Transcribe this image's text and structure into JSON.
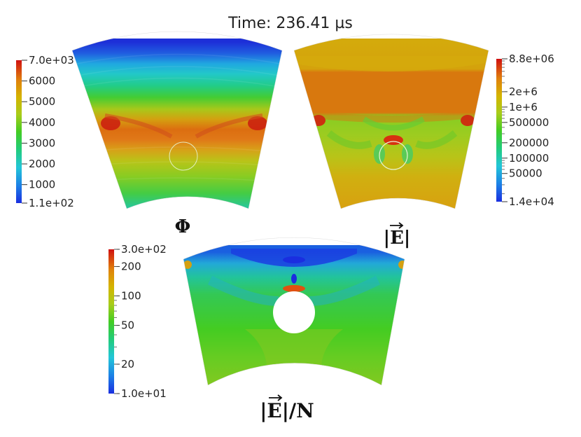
{
  "title": "Time: 236.41 µs",
  "colors": {
    "colormap": [
      "#1a2ee0",
      "#1c7fe6",
      "#22c6d8",
      "#22cc77",
      "#44cc22",
      "#a8cc1a",
      "#d4b400",
      "#e0820c",
      "#d8501a",
      "#d01010"
    ]
  },
  "panels": [
    {
      "id": "phi",
      "label": "Φ",
      "colorbar": {
        "scale": "linear",
        "range": [
          110,
          7000
        ],
        "ticks": [
          {
            "text": "7.0e+03",
            "value": 7000
          },
          {
            "text": "6000",
            "value": 6000
          },
          {
            "text": "5000",
            "value": 5000
          },
          {
            "text": "4000",
            "value": 4000
          },
          {
            "text": "3000",
            "value": 3000
          },
          {
            "text": "2000",
            "value": 2000
          },
          {
            "text": "1000",
            "value": 1000
          },
          {
            "text": "1.1e+02",
            "value": 110
          }
        ]
      }
    },
    {
      "id": "e-mag",
      "label": "|E|",
      "colorbar": {
        "scale": "log",
        "range": [
          14000,
          8800000
        ],
        "ticks": [
          {
            "text": "8.8e+06",
            "value": 8800000
          },
          {
            "text": "2e+6",
            "value": 2000000
          },
          {
            "text": "1e+6",
            "value": 1000000
          },
          {
            "text": "500000",
            "value": 500000
          },
          {
            "text": "200000",
            "value": 200000
          },
          {
            "text": "100000",
            "value": 100000
          },
          {
            "text": "50000",
            "value": 50000
          },
          {
            "text": "1.4e+04",
            "value": 14000
          }
        ]
      }
    },
    {
      "id": "e-over-n",
      "label": "|E|/N",
      "colorbar": {
        "scale": "log",
        "range": [
          10,
          300
        ],
        "ticks": [
          {
            "text": "3.0e+02",
            "value": 300
          },
          {
            "text": "200",
            "value": 200
          },
          {
            "text": "100",
            "value": 100
          },
          {
            "text": "50",
            "value": 50
          },
          {
            "text": "20",
            "value": 20
          },
          {
            "text": "1.0e+01",
            "value": 10
          }
        ]
      }
    }
  ]
}
